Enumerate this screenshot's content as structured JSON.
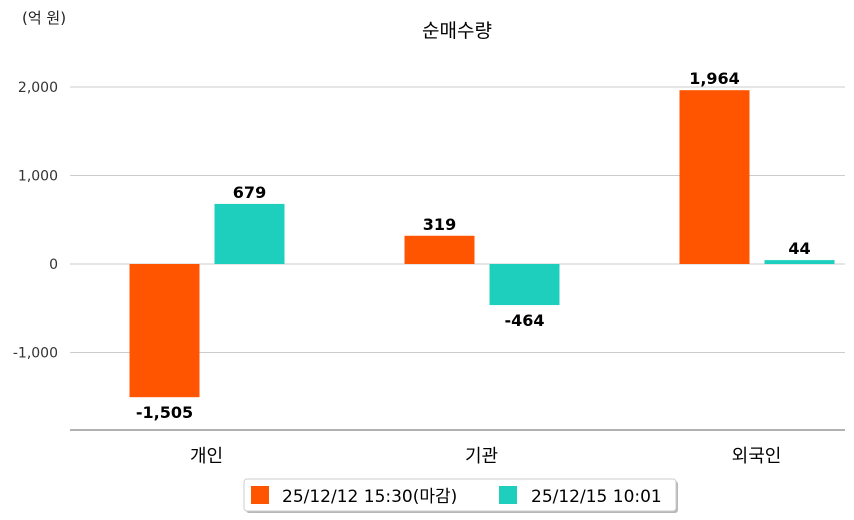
{
  "chart_data": {
    "type": "bar",
    "title": "순매수량",
    "unit_label": "(억 원)",
    "categories": [
      "개인",
      "기관",
      "외국인"
    ],
    "series": [
      {
        "name": "25/12/12 15:30(마감)",
        "color": "#FF5500",
        "values": [
          -1505,
          319,
          1964
        ]
      },
      {
        "name": "25/12/15 10:01",
        "color": "#1FCFBD",
        "values": [
          679,
          -464,
          44
        ]
      }
    ],
    "data_labels": [
      [
        "-1,505",
        "319",
        "1,964"
      ],
      [
        "679",
        "-464",
        "44"
      ]
    ],
    "yticks": [
      {
        "v": 2000,
        "label": "2,000"
      },
      {
        "v": 1000,
        "label": "1,000"
      },
      {
        "v": 0,
        "label": "0"
      },
      {
        "v": -1000,
        "label": "-1,000"
      }
    ],
    "ylim": [
      -1870,
      2250
    ],
    "grid": true,
    "legend_position": "bottom"
  }
}
